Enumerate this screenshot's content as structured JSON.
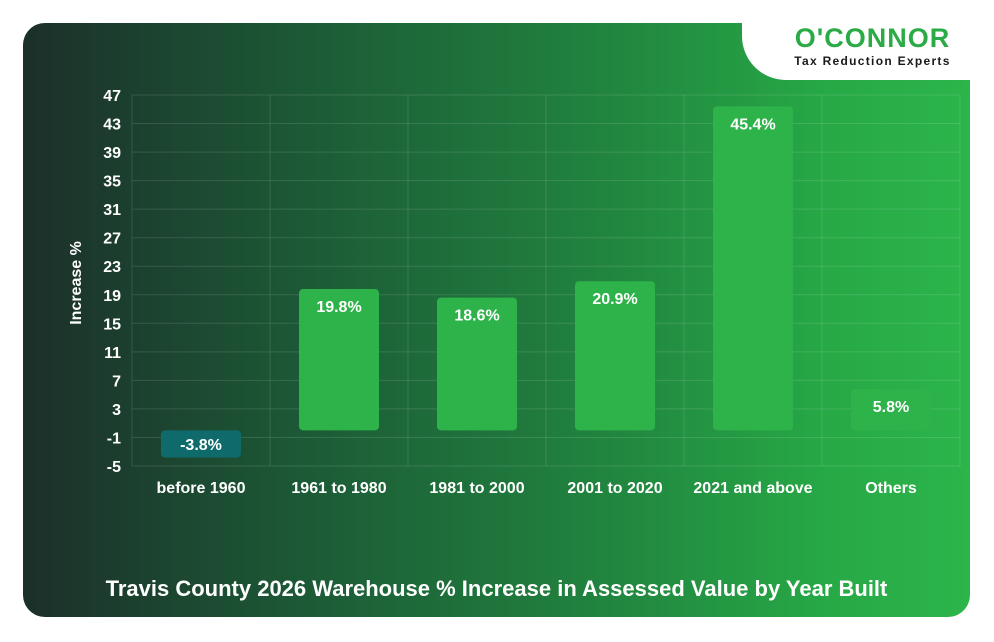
{
  "brand": {
    "name": "O'CONNOR",
    "tagline": "Tax Reduction Experts"
  },
  "chart_data": {
    "type": "bar",
    "title": "Travis County 2026 Warehouse % Increase in Assessed Value by Year Built",
    "xlabel": "",
    "ylabel": "Increase %",
    "categories": [
      "before 1960",
      "1961 to 1980",
      "1981 to 2000",
      "2001 to 2020",
      "2021 and above",
      "Others"
    ],
    "values": [
      -3.8,
      19.8,
      18.6,
      20.9,
      45.4,
      5.8
    ],
    "data_labels": [
      "-3.8%",
      "19.8%",
      "18.6%",
      "20.9%",
      "45.4%",
      "5.8%"
    ],
    "ylim": [
      -5,
      47
    ],
    "yticks": [
      -5,
      -1,
      3,
      7,
      11,
      15,
      19,
      23,
      27,
      31,
      35,
      39,
      43,
      47
    ],
    "grid": true,
    "colors": {
      "positive": "#2db34a",
      "negative": "#0f6a6b",
      "text": "#ffffff",
      "grid": "#ffffff"
    }
  }
}
